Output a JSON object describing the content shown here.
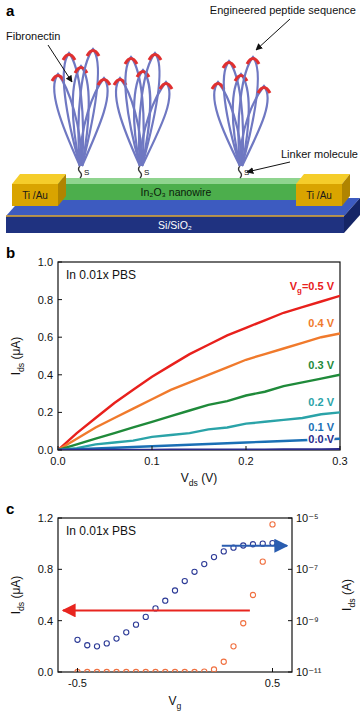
{
  "diagram": {
    "panel_label": "a",
    "labels": {
      "peptide": "Engineered peptide sequence",
      "protein": "Fibronectin",
      "linker": "Linker molecule",
      "electrode": "Ti /Au",
      "nanowire": "In₂O₃ nanowire",
      "substrate": "Si/SiO₂",
      "thiol": "S"
    }
  },
  "chart_data": [
    {
      "type": "line",
      "panel_label": "b",
      "annotation": "In 0.01x PBS",
      "x_label": "Vds (V)",
      "y_label": "Ids (μA)",
      "x": [
        0,
        0.02,
        0.04,
        0.06,
        0.08,
        0.1,
        0.12,
        0.14,
        0.16,
        0.18,
        0.2,
        0.22,
        0.24,
        0.26,
        0.28,
        0.3
      ],
      "series": [
        {
          "name": "Vg=0.5 V",
          "color": "#e8201c",
          "line_style": "solid",
          "values": [
            0,
            0.09,
            0.17,
            0.25,
            0.32,
            0.39,
            0.45,
            0.51,
            0.56,
            0.61,
            0.65,
            0.69,
            0.73,
            0.76,
            0.79,
            0.82
          ]
        },
        {
          "name": "0.4 V",
          "color": "#f07a2c",
          "line_style": "solid",
          "values": [
            0,
            0.06,
            0.12,
            0.17,
            0.22,
            0.27,
            0.32,
            0.36,
            0.4,
            0.44,
            0.48,
            0.51,
            0.54,
            0.57,
            0.6,
            0.62
          ]
        },
        {
          "name": "0.3 V",
          "color": "#1f8a3a",
          "line_style": "solid",
          "values": [
            0,
            0.03,
            0.06,
            0.09,
            0.12,
            0.15,
            0.18,
            0.21,
            0.24,
            0.26,
            0.29,
            0.31,
            0.34,
            0.36,
            0.38,
            0.4
          ]
        },
        {
          "name": "0.2 V",
          "color": "#2aa3a8",
          "line_style": "solid",
          "values": [
            0,
            0.01,
            0.03,
            0.04,
            0.05,
            0.07,
            0.08,
            0.09,
            0.11,
            0.12,
            0.14,
            0.15,
            0.16,
            0.17,
            0.19,
            0.2
          ]
        },
        {
          "name": "0.1 V",
          "color": "#1a6fb5",
          "line_style": "solid",
          "values": [
            0,
            0.004,
            0.008,
            0.012,
            0.016,
            0.02,
            0.024,
            0.028,
            0.032,
            0.036,
            0.04,
            0.044,
            0.048,
            0.052,
            0.056,
            0.06
          ]
        },
        {
          "name": "0.0 V",
          "color": "#2a2a8a",
          "line_style": "solid",
          "values": [
            0,
            0,
            0,
            0,
            0,
            0,
            0.001,
            0.001,
            0.001,
            0.002,
            0.002,
            0.002,
            0.003,
            0.003,
            0.003,
            0.004
          ]
        }
      ],
      "xlim": [
        0,
        0.3
      ],
      "xticks": [
        {
          "value": 0,
          "label": "0.0"
        },
        0.1,
        0.2,
        0.3
      ],
      "ylim": [
        0,
        1
      ],
      "yticks": [
        {
          "value": 0,
          "label": "0.0"
        },
        0.2,
        0.4,
        0.6,
        0.8,
        {
          "value": 1,
          "label": "1.0"
        }
      ],
      "grid": false
    },
    {
      "type": "scatter",
      "panel_label": "c",
      "annotation": "In 0.01x PBS",
      "x_label": "Vg",
      "y_label": "Ids (μA)",
      "x": [
        -0.5,
        -0.45,
        -0.4,
        -0.35,
        -0.3,
        -0.25,
        -0.2,
        -0.15,
        -0.1,
        -0.05,
        0,
        0.05,
        0.1,
        0.15,
        0.2,
        0.25,
        0.3,
        0.35,
        0.4,
        0.45,
        0.5
      ],
      "series": [
        {
          "color": "#f07040",
          "marker": "circle-open",
          "values": [
            0,
            0,
            0,
            0,
            0,
            0,
            0,
            0,
            0,
            0,
            0,
            0,
            0,
            0.003,
            0.02,
            0.08,
            0.2,
            0.38,
            0.6,
            0.86,
            1.15
          ]
        }
      ],
      "xlim": [
        -0.6,
        0.6
      ],
      "xticks": [
        -0.5,
        0.5
      ],
      "ylim": [
        0,
        1.2
      ],
      "yticks": [
        {
          "value": 0,
          "label": "0.0"
        },
        0.4,
        0.8,
        1.2
      ],
      "grid": false
    },
    {
      "type": "scatter",
      "y_label": "Ids (A)",
      "log": "y",
      "x": [
        -0.5,
        -0.45,
        -0.4,
        -0.35,
        -0.3,
        -0.25,
        -0.2,
        -0.15,
        -0.1,
        -0.05,
        0,
        0.05,
        0.1,
        0.15,
        0.2,
        0.25,
        0.3,
        0.35,
        0.4,
        0.45,
        0.5
      ],
      "series": [
        {
          "color": "#2c3a96",
          "marker": "circle-open",
          "values": [
            1.8e-10,
            1.1e-10,
            1e-10,
            1.3e-10,
            2e-10,
            3.5e-10,
            7e-10,
            1.4e-09,
            3e-09,
            6e-09,
            1.5e-08,
            3.5e-08,
            8e-08,
            1.6e-07,
            3e-07,
            5e-07,
            7e-07,
            8.5e-07,
            9.5e-07,
            1e-06,
            1.05e-06
          ]
        }
      ],
      "xlim": [
        -0.6,
        0.6
      ],
      "ylim": [
        1e-11,
        1e-05
      ],
      "yticks": [
        {
          "value": 1e-11,
          "label": "10⁻¹¹"
        },
        {
          "value": 1e-09,
          "label": "10⁻⁹"
        },
        {
          "value": 1e-07,
          "label": "10⁻⁷"
        },
        {
          "value": 1e-05,
          "label": "10⁻⁵"
        }
      ],
      "grid": false
    }
  ]
}
